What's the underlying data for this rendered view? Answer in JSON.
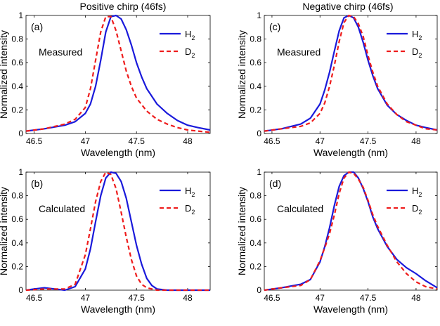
{
  "figure": {
    "column_titles": [
      "Positive chirp (46fs)",
      "Negative chirp (46fs)"
    ]
  },
  "colors": {
    "H2": "#1a1adb",
    "D2": "#ee1c1c",
    "axis": "#000000"
  },
  "chart_data": [
    {
      "type": "line",
      "panel_label": "(a)",
      "annotation": "Measured",
      "xlabel": "Wavelength (nm)",
      "ylabel": "Normalized intensity",
      "xlim": [
        46.42,
        48.22
      ],
      "ylim": [
        0,
        1
      ],
      "xticks": [
        46.5,
        47,
        47.5,
        48
      ],
      "xtick_labels": [
        "46.5",
        "47",
        "47.5",
        "48"
      ],
      "yticks": [
        0,
        0.2,
        0.4,
        0.6,
        0.8,
        1
      ],
      "ytick_labels": [
        "0",
        "0.2",
        "0.4",
        "0.6",
        "0.8",
        "1"
      ],
      "legend": "top-right",
      "series": [
        {
          "name": "H2",
          "legend_label": "H",
          "legend_sub": "2",
          "style": "solid",
          "x": [
            46.42,
            46.6,
            46.8,
            46.9,
            47.0,
            47.05,
            47.1,
            47.15,
            47.2,
            47.25,
            47.3,
            47.35,
            47.4,
            47.45,
            47.5,
            47.55,
            47.6,
            47.7,
            47.8,
            47.9,
            48.0,
            48.1,
            48.22
          ],
          "y": [
            0.02,
            0.04,
            0.07,
            0.1,
            0.17,
            0.25,
            0.4,
            0.62,
            0.86,
            0.99,
            1.0,
            0.97,
            0.88,
            0.75,
            0.6,
            0.48,
            0.38,
            0.25,
            0.17,
            0.11,
            0.07,
            0.05,
            0.03
          ]
        },
        {
          "name": "D2",
          "legend_label": "D",
          "legend_sub": "2",
          "style": "dashed",
          "x": [
            46.42,
            46.6,
            46.8,
            46.9,
            47.0,
            47.05,
            47.1,
            47.15,
            47.2,
            47.25,
            47.3,
            47.35,
            47.4,
            47.45,
            47.5,
            47.6,
            47.7,
            47.8,
            47.9,
            48.0,
            48.1,
            48.22
          ],
          "y": [
            0.02,
            0.04,
            0.08,
            0.12,
            0.22,
            0.38,
            0.62,
            0.86,
            0.99,
            0.99,
            0.87,
            0.7,
            0.53,
            0.4,
            0.3,
            0.19,
            0.12,
            0.08,
            0.05,
            0.03,
            0.02,
            0.01
          ]
        }
      ]
    },
    {
      "type": "line",
      "panel_label": "(b)",
      "annotation": "Calculated",
      "xlabel": "Wavelength (nm)",
      "ylabel": "Normalized intensity",
      "xlim": [
        46.42,
        48.22
      ],
      "ylim": [
        0,
        1
      ],
      "xticks": [
        46.5,
        47,
        47.5,
        48
      ],
      "xtick_labels": [
        "46.5",
        "47",
        "47.5",
        "48"
      ],
      "yticks": [
        0,
        0.2,
        0.4,
        0.6,
        0.8,
        1
      ],
      "ytick_labels": [
        "0",
        "0.2",
        "0.4",
        "0.6",
        "0.8",
        "1"
      ],
      "legend": "top-right",
      "series": [
        {
          "name": "H2",
          "legend_label": "H",
          "legend_sub": "2",
          "style": "solid",
          "x": [
            46.42,
            46.5,
            46.6,
            46.7,
            46.8,
            46.9,
            47.0,
            47.05,
            47.1,
            47.15,
            47.2,
            47.25,
            47.3,
            47.35,
            47.4,
            47.45,
            47.5,
            47.55,
            47.6,
            47.65,
            47.7,
            47.8,
            48.0,
            48.22
          ],
          "y": [
            0.0,
            0.01,
            0.02,
            0.01,
            0.0,
            0.03,
            0.18,
            0.35,
            0.58,
            0.8,
            0.95,
            1.0,
            0.99,
            0.92,
            0.78,
            0.58,
            0.38,
            0.22,
            0.1,
            0.04,
            0.01,
            0.0,
            0.0,
            0.0
          ]
        },
        {
          "name": "D2",
          "legend_label": "D",
          "legend_sub": "2",
          "style": "dashed",
          "x": [
            46.42,
            46.6,
            46.8,
            46.9,
            47.0,
            47.05,
            47.1,
            47.15,
            47.2,
            47.25,
            47.3,
            47.35,
            47.4,
            47.45,
            47.5,
            47.55,
            47.6,
            47.7,
            48.0,
            48.22
          ],
          "y": [
            0.0,
            0.01,
            0.01,
            0.05,
            0.3,
            0.52,
            0.75,
            0.92,
            1.0,
            0.98,
            0.86,
            0.66,
            0.45,
            0.26,
            0.12,
            0.05,
            0.02,
            0.0,
            0.0,
            0.0
          ]
        }
      ]
    },
    {
      "type": "line",
      "panel_label": "(c)",
      "annotation": "Measured",
      "xlabel": "Wavelength (nm)",
      "ylabel": "Normalized intensity",
      "xlim": [
        46.42,
        48.22
      ],
      "ylim": [
        0,
        1
      ],
      "xticks": [
        46.5,
        47,
        47.5,
        48
      ],
      "xtick_labels": [
        "46.5",
        "47",
        "47.5",
        "48"
      ],
      "yticks": [
        0,
        0.2,
        0.4,
        0.6,
        0.8,
        1
      ],
      "ytick_labels": [
        "0",
        "0.2",
        "0.4",
        "0.6",
        "0.8",
        "1"
      ],
      "legend": "top-right",
      "series": [
        {
          "name": "H2",
          "legend_label": "H",
          "legend_sub": "2",
          "style": "solid",
          "x": [
            46.42,
            46.6,
            46.8,
            46.9,
            47.0,
            47.05,
            47.1,
            47.15,
            47.2,
            47.25,
            47.3,
            47.35,
            47.4,
            47.45,
            47.5,
            47.55,
            47.6,
            47.7,
            47.8,
            47.9,
            48.0,
            48.1,
            48.22
          ],
          "y": [
            0.02,
            0.04,
            0.08,
            0.13,
            0.25,
            0.37,
            0.52,
            0.7,
            0.87,
            0.98,
            1.0,
            0.98,
            0.9,
            0.77,
            0.62,
            0.49,
            0.38,
            0.24,
            0.16,
            0.11,
            0.07,
            0.05,
            0.03
          ]
        },
        {
          "name": "D2",
          "legend_label": "D",
          "legend_sub": "2",
          "style": "dashed",
          "x": [
            46.42,
            46.6,
            46.8,
            46.9,
            47.0,
            47.05,
            47.1,
            47.15,
            47.2,
            47.25,
            47.3,
            47.35,
            47.4,
            47.45,
            47.5,
            47.55,
            47.6,
            47.7,
            47.8,
            47.9,
            48.0,
            48.1,
            48.22
          ],
          "y": [
            0.02,
            0.04,
            0.06,
            0.09,
            0.17,
            0.26,
            0.4,
            0.58,
            0.78,
            0.94,
            1.0,
            0.99,
            0.93,
            0.82,
            0.66,
            0.52,
            0.4,
            0.25,
            0.16,
            0.1,
            0.07,
            0.04,
            0.03
          ]
        }
      ]
    },
    {
      "type": "line",
      "panel_label": "(d)",
      "annotation": "Calculated",
      "xlabel": "Wavelength (nm)",
      "ylabel": "Normalized intensity",
      "xlim": [
        46.42,
        48.22
      ],
      "ylim": [
        0,
        1
      ],
      "xticks": [
        46.5,
        47,
        47.5,
        48
      ],
      "xtick_labels": [
        "46.5",
        "47",
        "47.5",
        "48"
      ],
      "yticks": [
        0,
        0.2,
        0.4,
        0.6,
        0.8,
        1
      ],
      "ytick_labels": [
        "0",
        "0.2",
        "0.4",
        "0.6",
        "0.8",
        "1"
      ],
      "legend": "top-right",
      "series": [
        {
          "name": "H2",
          "legend_label": "H",
          "legend_sub": "2",
          "style": "solid",
          "x": [
            46.42,
            46.6,
            46.8,
            46.9,
            47.0,
            47.05,
            47.1,
            47.15,
            47.2,
            47.25,
            47.3,
            47.35,
            47.4,
            47.45,
            47.5,
            47.55,
            47.6,
            47.7,
            47.8,
            47.9,
            48.0,
            48.1,
            48.22
          ],
          "y": [
            0.0,
            0.02,
            0.05,
            0.09,
            0.24,
            0.37,
            0.53,
            0.72,
            0.88,
            0.97,
            1.0,
            1.0,
            0.95,
            0.86,
            0.75,
            0.62,
            0.52,
            0.37,
            0.26,
            0.19,
            0.14,
            0.08,
            0.02
          ]
        },
        {
          "name": "D2",
          "legend_label": "D",
          "legend_sub": "2",
          "style": "dashed",
          "x": [
            46.42,
            46.6,
            46.8,
            46.9,
            47.0,
            47.05,
            47.1,
            47.15,
            47.2,
            47.25,
            47.3,
            47.35,
            47.4,
            47.45,
            47.5,
            47.55,
            47.6,
            47.7,
            47.8,
            47.9,
            48.0,
            48.1,
            48.22
          ],
          "y": [
            0.0,
            0.02,
            0.04,
            0.09,
            0.25,
            0.36,
            0.48,
            0.64,
            0.82,
            0.95,
            1.0,
            0.99,
            0.94,
            0.87,
            0.76,
            0.64,
            0.54,
            0.38,
            0.24,
            0.14,
            0.07,
            0.03,
            0.01
          ]
        }
      ]
    }
  ]
}
